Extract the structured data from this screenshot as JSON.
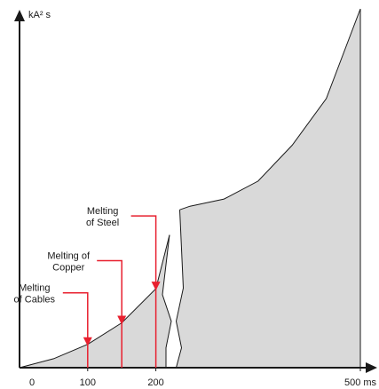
{
  "chart_data": {
    "type": "area",
    "ylabel": "kA² s",
    "xlim": [
      0,
      500
    ],
    "ylim": [
      0,
      100
    ],
    "x_ticks": [
      {
        "value": 0,
        "label": "0"
      },
      {
        "value": 100,
        "label": "100"
      },
      {
        "value": 200,
        "label": "200"
      },
      {
        "value": 500,
        "label": "500 ms"
      }
    ],
    "curve": {
      "x": [
        0,
        50,
        100,
        150,
        200,
        220,
        235,
        250,
        300,
        350,
        400,
        450,
        500
      ],
      "y": [
        0,
        2.5,
        6.5,
        12.5,
        22,
        37,
        44,
        45,
        47,
        52,
        62,
        75,
        100
      ]
    },
    "break_between_x": [
      220,
      235
    ],
    "annotations": [
      {
        "label_lines": [
          "Melting",
          "of Cables"
        ],
        "x": 100
      },
      {
        "label_lines": [
          "Melting of",
          "Copper"
        ],
        "x": 150
      },
      {
        "label_lines": [
          "Melting",
          "of Steel"
        ],
        "x": 200
      }
    ],
    "colors": {
      "fill": "#d9d9d9",
      "line": "#1a1a1a",
      "marker": "#e8202f"
    }
  }
}
